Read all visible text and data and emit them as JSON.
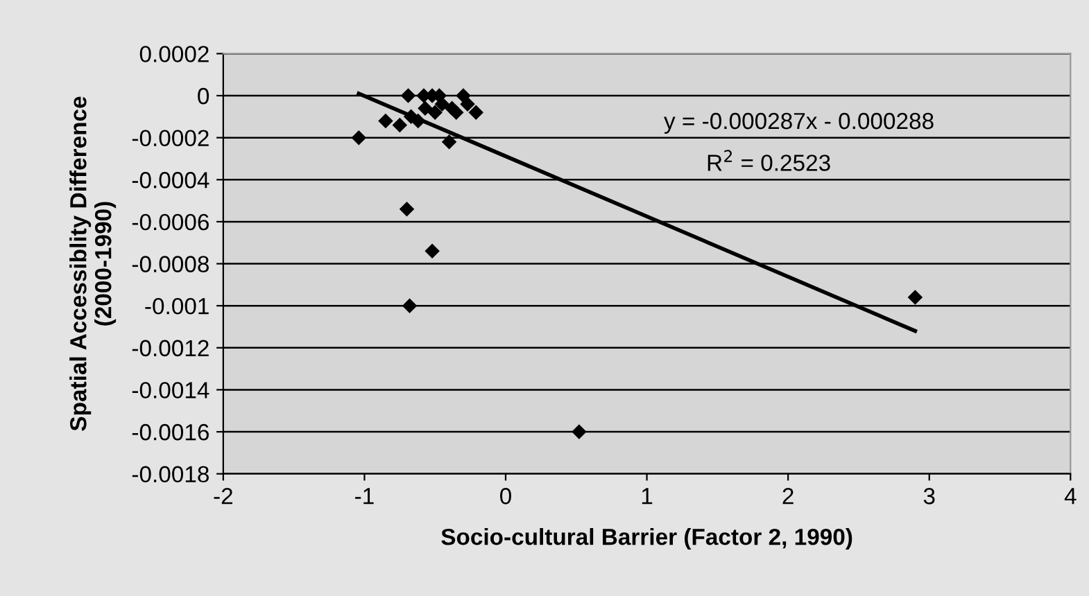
{
  "chart_data": {
    "type": "scatter",
    "xlabel": "Socio-cultural Barrier (Factor 2, 1990)",
    "ylabel": "Spatial Accessiblity Difference\n(2000-1990)",
    "series": [
      {
        "color": "#000000",
        "marker": "diamond",
        "x": [
          -1.04,
          -0.85,
          -0.75,
          -0.7,
          -0.68,
          -0.69,
          -0.52,
          -0.67,
          -0.58,
          -0.5,
          -0.45,
          -0.4,
          -0.38,
          -0.3,
          -0.27,
          -0.21,
          -0.62,
          -0.57,
          -0.52,
          -0.47,
          -0.35,
          0.52,
          2.9
        ],
        "values": [
          -0.0002,
          -0.00012,
          -0.00014,
          -0.00054,
          -0.001,
          0,
          -0.00074,
          -0.0001,
          0,
          -8e-05,
          -4e-05,
          -0.00022,
          -6e-05,
          0,
          -4e-05,
          -8e-05,
          -0.00012,
          -6e-05,
          0,
          0,
          -8e-05,
          -0.0016,
          -0.00096
        ]
      },
      {
        "type": "line",
        "color": "#000000",
        "marker": "none",
        "line_style": "solid",
        "x": [
          -1.04,
          2.9
        ],
        "values": [
          1e-05,
          -0.00112
        ]
      }
    ],
    "annotations": [
      "y = -0.000287x - 0.000288",
      "R$^{2}$ = 0.2523"
    ],
    "xlim": [
      -2,
      4
    ],
    "xticks": [
      -2,
      -1,
      0,
      1,
      2,
      3,
      4
    ],
    "ylim": [
      -0.0018,
      0.0002
    ],
    "yticks": [
      {
        "value": 0.0002,
        "label": "0.0002"
      },
      0,
      {
        "value": -0.0002,
        "label": "-0.0002"
      },
      {
        "value": -0.0004,
        "label": "-0.0004"
      },
      {
        "value": -0.0006,
        "label": "-0.0006"
      },
      {
        "value": -0.0008,
        "label": "-0.0008"
      },
      {
        "value": -0.001,
        "label": "-0.001"
      },
      {
        "value": -0.0012,
        "label": "-0.0012"
      },
      {
        "value": -0.0014,
        "label": "-0.0014"
      },
      {
        "value": -0.0016,
        "label": "-0.0016"
      },
      {
        "value": -0.0018,
        "label": "-0.0018"
      }
    ],
    "grid": "y",
    "legend": false
  }
}
